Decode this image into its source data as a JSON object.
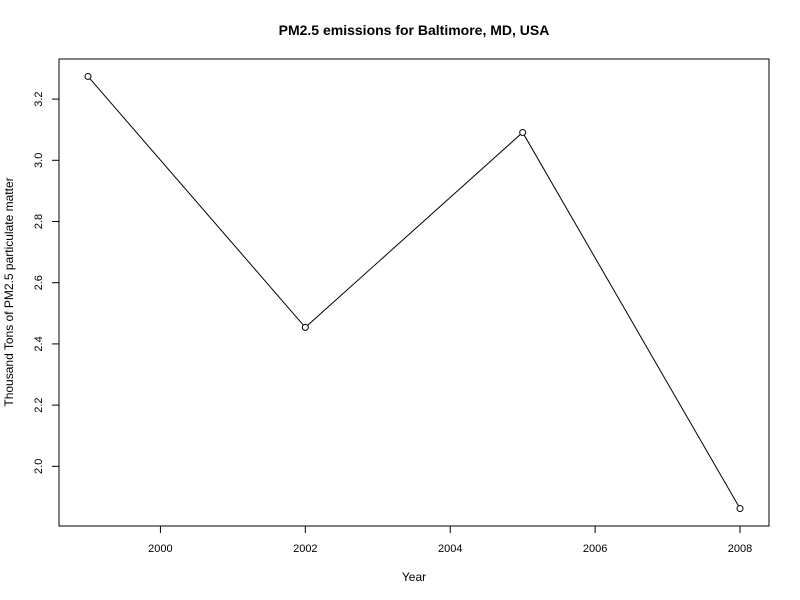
{
  "chart_data": {
    "type": "line",
    "title": "PM2.5 emissions for Baltimore, MD, USA",
    "xlabel": "Year",
    "ylabel": "Thousand Tons of PM2.5 particulate matter",
    "x": [
      1999,
      2002,
      2005,
      2008
    ],
    "series": [
      {
        "values": [
          3.274,
          2.454,
          3.091,
          1.862
        ]
      }
    ],
    "xlim": [
      1998.6,
      2008.4
    ],
    "ylim": [
      1.805,
      3.331
    ],
    "xticks": [
      2000,
      2002,
      2004,
      2006,
      2008
    ],
    "yticks": [
      2.0,
      2.2,
      2.4,
      2.6,
      2.8,
      3.0,
      3.2
    ],
    "xtick_labels": [
      "2000",
      "2002",
      "2004",
      "2006",
      "2008"
    ],
    "ytick_labels": [
      "2.0",
      "2.2",
      "2.4",
      "2.6",
      "2.8",
      "3.0",
      "3.2"
    ],
    "grid": false,
    "legend": "none",
    "marker": "open-circle",
    "line_color": "#000000"
  }
}
